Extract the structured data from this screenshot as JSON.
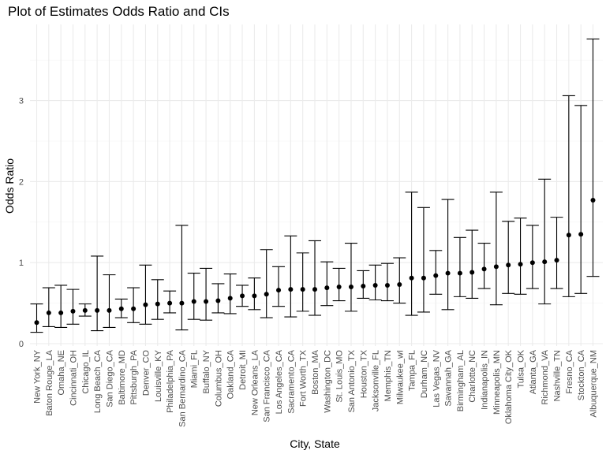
{
  "chart_data": {
    "type": "scatter",
    "title": "Plot of Estimates Odds Ratio and CIs",
    "xlabel": "City, State",
    "ylabel": "Odds Ratio",
    "ylim": [
      0,
      3.95
    ],
    "yticks": [
      0,
      1,
      2,
      3
    ],
    "grid": true,
    "legend": "none",
    "colors": {
      "point": "#000000",
      "errorbar": "#000000",
      "grid": "#ebebeb"
    },
    "categories": [
      "New York_NY",
      "Baton Rouge_LA",
      "Omaha_NE",
      "Cincinnati_OH",
      "Chicago_IL",
      "Long Beach_CA",
      "San Diego_CA",
      "Baltimore_MD",
      "Pittsburgh_PA",
      "Denver_CO",
      "Louisville_KY",
      "Philadelphia_PA",
      "San Bernardino_CA",
      "Miami_FL",
      "Buffalo_NY",
      "Columbus_OH",
      "Oakland_CA",
      "Detroit_MI",
      "New Orleans_LA",
      "San Francisco_CA",
      "Los Angeles_CA",
      "Sacramento_CA",
      "Fort Worth_TX",
      "Boston_MA",
      "Washington_DC",
      "St. Louis_MO",
      "San Antonio_TX",
      "Houston_TX",
      "Jacksonville_FL",
      "Memphis_TN",
      "Milwaukee_wI",
      "Tampa_FL",
      "Durham_NC",
      "Las Vegas_NV",
      "Savannah_GA",
      "Birmingham_AL",
      "Charlotte_NC",
      "Indianapolis_IN",
      "Minneapolis_MN",
      "Oklahoma City_OK",
      "Tulsa_OK",
      "Atlanta_GA",
      "Richmond_VA",
      "Nashville_TN",
      "Fresno_CA",
      "Stockton_CA",
      "Albuquerque_NM"
    ],
    "series": [
      {
        "estimate": [
          0.26,
          0.38,
          0.38,
          0.4,
          0.41,
          0.41,
          0.41,
          0.43,
          0.43,
          0.48,
          0.49,
          0.5,
          0.5,
          0.52,
          0.52,
          0.53,
          0.56,
          0.59,
          0.59,
          0.61,
          0.66,
          0.67,
          0.67,
          0.67,
          0.69,
          0.7,
          0.7,
          0.71,
          0.72,
          0.72,
          0.73,
          0.81,
          0.81,
          0.84,
          0.87,
          0.87,
          0.88,
          0.92,
          0.95,
          0.97,
          0.98,
          1.0,
          1.01,
          1.03,
          1.34,
          1.35,
          1.77
        ],
        "ci_low": [
          0.14,
          0.21,
          0.2,
          0.24,
          0.34,
          0.16,
          0.2,
          0.32,
          0.26,
          0.24,
          0.3,
          0.38,
          0.17,
          0.3,
          0.29,
          0.38,
          0.37,
          0.46,
          0.42,
          0.32,
          0.46,
          0.33,
          0.4,
          0.35,
          0.47,
          0.53,
          0.4,
          0.56,
          0.54,
          0.53,
          0.5,
          0.35,
          0.39,
          0.61,
          0.42,
          0.58,
          0.56,
          0.68,
          0.48,
          0.62,
          0.61,
          0.68,
          0.49,
          0.68,
          0.58,
          0.62,
          0.83
        ],
        "ci_high": [
          0.49,
          0.69,
          0.72,
          0.67,
          0.49,
          1.08,
          0.85,
          0.55,
          0.69,
          0.97,
          0.79,
          0.65,
          1.46,
          0.87,
          0.93,
          0.74,
          0.86,
          0.72,
          0.81,
          1.16,
          0.95,
          1.33,
          1.12,
          1.27,
          1.01,
          0.93,
          1.24,
          0.9,
          0.97,
          0.99,
          1.06,
          1.87,
          1.68,
          1.15,
          1.78,
          1.31,
          1.4,
          1.24,
          1.87,
          1.51,
          1.55,
          1.46,
          2.03,
          1.56,
          3.06,
          2.94,
          3.76
        ]
      }
    ]
  }
}
